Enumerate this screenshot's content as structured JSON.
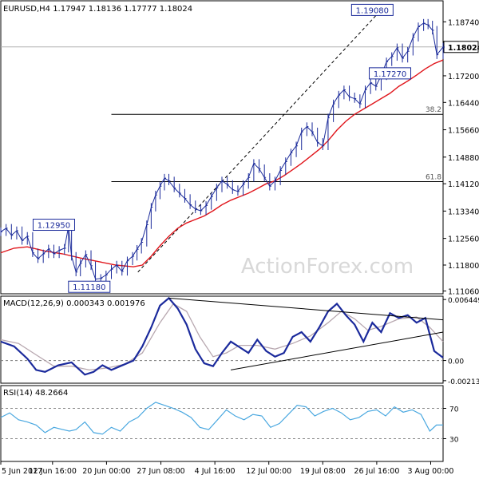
{
  "chart_data": [
    {
      "type": "candlestick",
      "header": {
        "symbol": "EURUSD,H4",
        "values": [
          "1.17947",
          "1.18136",
          "1.17777",
          "1.18024"
        ]
      },
      "ylim": [
        1.1098,
        1.1934
      ],
      "y_ticks": [
        1.1874,
        1.1802,
        1.172,
        1.1644,
        1.1566,
        1.1488,
        1.1412,
        1.1334,
        1.1256,
        1.118,
        1.1106
      ],
      "y_tick_labels": [
        "1.18740",
        "1.18024",
        "1.17200",
        "1.16440",
        "1.15660",
        "1.14880",
        "1.14120",
        "1.13340",
        "1.12560",
        "1.11800",
        "1.11060"
      ],
      "current_price": 1.18024,
      "fib_levels": [
        {
          "label": "38.2",
          "value": 1.161
        },
        {
          "label": "61.8",
          "value": 1.1418
        }
      ],
      "price_labels": [
        {
          "text": "1.19080",
          "value": 1.1908,
          "t": 0.84
        },
        {
          "text": "1.12950",
          "value": 1.1295,
          "t": 0.12
        },
        {
          "text": "1.11180",
          "value": 1.1118,
          "t": 0.2
        },
        {
          "text": "1.17270",
          "value": 1.1727,
          "t": 0.88
        }
      ],
      "trend_channel": {
        "from": {
          "t": 0.31,
          "value": 1.116
        },
        "to": {
          "t": 0.86,
          "value": 1.1908
        }
      },
      "close_path": [
        [
          0.0,
          1.1275
        ],
        [
          0.012,
          1.1285
        ],
        [
          0.024,
          1.1265
        ],
        [
          0.036,
          1.1278
        ],
        [
          0.048,
          1.125
        ],
        [
          0.06,
          1.1262
        ],
        [
          0.072,
          1.1215
        ],
        [
          0.084,
          1.1198
        ],
        [
          0.096,
          1.1212
        ],
        [
          0.108,
          1.1226
        ],
        [
          0.12,
          1.1212
        ],
        [
          0.132,
          1.1222
        ],
        [
          0.144,
          1.1228
        ],
        [
          0.153,
          1.129
        ],
        [
          0.16,
          1.1205
        ],
        [
          0.17,
          1.116
        ],
        [
          0.18,
          1.1185
        ],
        [
          0.192,
          1.121
        ],
        [
          0.204,
          1.1178
        ],
        [
          0.214,
          1.114
        ],
        [
          0.226,
          1.1142
        ],
        [
          0.238,
          1.1152
        ],
        [
          0.25,
          1.1168
        ],
        [
          0.262,
          1.118
        ],
        [
          0.274,
          1.1162
        ],
        [
          0.286,
          1.1192
        ],
        [
          0.298,
          1.1205
        ],
        [
          0.308,
          1.1225
        ],
        [
          0.318,
          1.1245
        ],
        [
          0.33,
          1.1295
        ],
        [
          0.34,
          1.1345
        ],
        [
          0.35,
          1.138
        ],
        [
          0.36,
          1.1405
        ],
        [
          0.37,
          1.1428
        ],
        [
          0.38,
          1.142
        ],
        [
          0.392,
          1.14
        ],
        [
          0.404,
          1.1385
        ],
        [
          0.416,
          1.137
        ],
        [
          0.428,
          1.1352
        ],
        [
          0.44,
          1.134
        ],
        [
          0.452,
          1.1335
        ],
        [
          0.464,
          1.135
        ],
        [
          0.476,
          1.1375
        ],
        [
          0.488,
          1.14
        ],
        [
          0.5,
          1.142
        ],
        [
          0.512,
          1.141
        ],
        [
          0.524,
          1.1395
        ],
        [
          0.536,
          1.139
        ],
        [
          0.548,
          1.141
        ],
        [
          0.56,
          1.143
        ],
        [
          0.572,
          1.147
        ],
        [
          0.584,
          1.1455
        ],
        [
          0.596,
          1.143
        ],
        [
          0.608,
          1.1405
        ],
        [
          0.62,
          1.142
        ],
        [
          0.632,
          1.145
        ],
        [
          0.644,
          1.1475
        ],
        [
          0.656,
          1.15
        ],
        [
          0.668,
          1.152
        ],
        [
          0.68,
          1.156
        ],
        [
          0.692,
          1.1575
        ],
        [
          0.704,
          1.156
        ],
        [
          0.716,
          1.153
        ],
        [
          0.728,
          1.152
        ],
        [
          0.74,
          1.16
        ],
        [
          0.752,
          1.164
        ],
        [
          0.764,
          1.1665
        ],
        [
          0.776,
          1.168
        ],
        [
          0.788,
          1.166
        ],
        [
          0.8,
          1.1655
        ],
        [
          0.812,
          1.164
        ],
        [
          0.824,
          1.168
        ],
        [
          0.836,
          1.17
        ],
        [
          0.848,
          1.169
        ],
        [
          0.86,
          1.172
        ],
        [
          0.872,
          1.176
        ],
        [
          0.884,
          1.1775
        ],
        [
          0.896,
          1.18
        ],
        [
          0.908,
          1.177
        ],
        [
          0.92,
          1.179
        ],
        [
          0.932,
          1.183
        ],
        [
          0.944,
          1.186
        ],
        [
          0.956,
          1.187
        ],
        [
          0.966,
          1.1865
        ],
        [
          0.976,
          1.185
        ],
        [
          0.986,
          1.178
        ],
        [
          1.0,
          1.1802
        ]
      ],
      "ma_path": [
        [
          0.0,
          1.1215
        ],
        [
          0.03,
          1.1228
        ],
        [
          0.06,
          1.1232
        ],
        [
          0.1,
          1.122
        ],
        [
          0.14,
          1.1212
        ],
        [
          0.18,
          1.12
        ],
        [
          0.22,
          1.119
        ],
        [
          0.26,
          1.118
        ],
        [
          0.3,
          1.1175
        ],
        [
          0.32,
          1.118
        ],
        [
          0.34,
          1.1205
        ],
        [
          0.36,
          1.1235
        ],
        [
          0.38,
          1.1262
        ],
        [
          0.4,
          1.1285
        ],
        [
          0.42,
          1.13
        ],
        [
          0.44,
          1.131
        ],
        [
          0.46,
          1.132
        ],
        [
          0.48,
          1.1335
        ],
        [
          0.5,
          1.1352
        ],
        [
          0.52,
          1.1365
        ],
        [
          0.54,
          1.1375
        ],
        [
          0.56,
          1.1385
        ],
        [
          0.58,
          1.1398
        ],
        [
          0.6,
          1.1412
        ],
        [
          0.62,
          1.142
        ],
        [
          0.64,
          1.1435
        ],
        [
          0.66,
          1.1452
        ],
        [
          0.68,
          1.147
        ],
        [
          0.7,
          1.149
        ],
        [
          0.72,
          1.151
        ],
        [
          0.74,
          1.1535
        ],
        [
          0.76,
          1.1565
        ],
        [
          0.78,
          1.159
        ],
        [
          0.8,
          1.161
        ],
        [
          0.82,
          1.1625
        ],
        [
          0.84,
          1.164
        ],
        [
          0.86,
          1.1655
        ],
        [
          0.88,
          1.167
        ],
        [
          0.9,
          1.169
        ],
        [
          0.92,
          1.1705
        ],
        [
          0.94,
          1.1722
        ],
        [
          0.96,
          1.174
        ],
        [
          0.98,
          1.1755
        ],
        [
          1.0,
          1.1765
        ]
      ],
      "x_labels": [
        {
          "text": "5 Jun 2017",
          "t": 0.0
        },
        {
          "text": "12 Jun 16:00",
          "t": 0.117
        },
        {
          "text": "20 Jun 00:00",
          "t": 0.239
        },
        {
          "text": "27 Jun 08:00",
          "t": 0.362
        },
        {
          "text": "4 Jul 16:00",
          "t": 0.484
        },
        {
          "text": "12 Jul 00:00",
          "t": 0.606
        },
        {
          "text": "19 Jul 08:00",
          "t": 0.728
        },
        {
          "text": "26 Jul 16:00",
          "t": 0.85
        },
        {
          "text": "3 Aug 00:00",
          "t": 0.972
        }
      ],
      "watermark": "ActionForex.com"
    },
    {
      "type": "line",
      "title": "MACD(12,26,9) 0.000343 0.001976",
      "ylim": [
        -0.0024,
        0.0068
      ],
      "y_ticks": [
        0.006449,
        0.0,
        -0.002134
      ],
      "y_tick_labels": [
        "0.006449",
        "0.00",
        "-0.002134"
      ],
      "series": [
        {
          "name": "MACD",
          "color": "#1b2a9c",
          "points": [
            [
              0.0,
              0.002
            ],
            [
              0.03,
              0.0015
            ],
            [
              0.06,
              0.0002
            ],
            [
              0.08,
              -0.001
            ],
            [
              0.1,
              -0.0012
            ],
            [
              0.13,
              -0.0005
            ],
            [
              0.16,
              -0.0002
            ],
            [
              0.19,
              -0.0015
            ],
            [
              0.21,
              -0.0012
            ],
            [
              0.23,
              -0.0005
            ],
            [
              0.25,
              -0.001
            ],
            [
              0.27,
              -0.0006
            ],
            [
              0.3,
              0.0
            ],
            [
              0.32,
              0.0015
            ],
            [
              0.34,
              0.0035
            ],
            [
              0.36,
              0.0058
            ],
            [
              0.38,
              0.0066
            ],
            [
              0.4,
              0.0055
            ],
            [
              0.42,
              0.0038
            ],
            [
              0.44,
              0.0012
            ],
            [
              0.46,
              -0.0003
            ],
            [
              0.48,
              -0.0006
            ],
            [
              0.5,
              0.0008
            ],
            [
              0.52,
              0.002
            ],
            [
              0.54,
              0.0014
            ],
            [
              0.56,
              0.0008
            ],
            [
              0.58,
              0.0022
            ],
            [
              0.6,
              0.001
            ],
            [
              0.62,
              0.0004
            ],
            [
              0.64,
              0.0008
            ],
            [
              0.66,
              0.0025
            ],
            [
              0.68,
              0.003
            ],
            [
              0.7,
              0.002
            ],
            [
              0.72,
              0.0035
            ],
            [
              0.74,
              0.0052
            ],
            [
              0.76,
              0.006
            ],
            [
              0.78,
              0.0048
            ],
            [
              0.8,
              0.0038
            ],
            [
              0.82,
              0.002
            ],
            [
              0.84,
              0.004
            ],
            [
              0.86,
              0.003
            ],
            [
              0.88,
              0.005
            ],
            [
              0.9,
              0.0045
            ],
            [
              0.92,
              0.0048
            ],
            [
              0.94,
              0.004
            ],
            [
              0.96,
              0.0045
            ],
            [
              0.98,
              0.001
            ],
            [
              1.0,
              0.0003
            ]
          ]
        },
        {
          "name": "Signal",
          "color": "#b8a8b0",
          "points": [
            [
              0.0,
              0.0022
            ],
            [
              0.04,
              0.0018
            ],
            [
              0.08,
              0.0006
            ],
            [
              0.12,
              -0.0006
            ],
            [
              0.16,
              -0.0006
            ],
            [
              0.2,
              -0.001
            ],
            [
              0.24,
              -0.0008
            ],
            [
              0.28,
              -0.0004
            ],
            [
              0.32,
              0.0008
            ],
            [
              0.36,
              0.004
            ],
            [
              0.39,
              0.006
            ],
            [
              0.42,
              0.0052
            ],
            [
              0.45,
              0.0025
            ],
            [
              0.48,
              0.0004
            ],
            [
              0.51,
              0.0008
            ],
            [
              0.54,
              0.0016
            ],
            [
              0.58,
              0.0016
            ],
            [
              0.62,
              0.0012
            ],
            [
              0.66,
              0.0018
            ],
            [
              0.7,
              0.0026
            ],
            [
              0.74,
              0.004
            ],
            [
              0.77,
              0.0052
            ],
            [
              0.8,
              0.0044
            ],
            [
              0.83,
              0.0032
            ],
            [
              0.86,
              0.0036
            ],
            [
              0.9,
              0.0044
            ],
            [
              0.94,
              0.0046
            ],
            [
              0.97,
              0.0035
            ],
            [
              1.0,
              0.002
            ]
          ]
        }
      ],
      "trend_lines": [
        {
          "from": [
            0.38,
            0.0066
          ],
          "to": [
            1.0,
            0.0043
          ]
        },
        {
          "from": [
            0.52,
            -0.001
          ],
          "to": [
            1.0,
            0.003
          ]
        }
      ]
    },
    {
      "type": "line",
      "title": "RSI(14) 48.2664",
      "ylim": [
        0,
        100
      ],
      "y_ticks": [
        70,
        30
      ],
      "y_tick_labels": [
        "70",
        "30"
      ],
      "series": [
        {
          "name": "RSI",
          "color": "#4aa8e0",
          "points": [
            [
              0.0,
              58
            ],
            [
              0.02,
              64
            ],
            [
              0.04,
              55
            ],
            [
              0.06,
              52
            ],
            [
              0.08,
              48
            ],
            [
              0.1,
              38
            ],
            [
              0.12,
              45
            ],
            [
              0.14,
              42
            ],
            [
              0.155,
              40
            ],
            [
              0.17,
              42
            ],
            [
              0.19,
              52
            ],
            [
              0.21,
              38
            ],
            [
              0.23,
              36
            ],
            [
              0.25,
              45
            ],
            [
              0.27,
              40
            ],
            [
              0.29,
              52
            ],
            [
              0.31,
              58
            ],
            [
              0.33,
              70
            ],
            [
              0.35,
              78
            ],
            [
              0.37,
              74
            ],
            [
              0.39,
              70
            ],
            [
              0.41,
              65
            ],
            [
              0.43,
              58
            ],
            [
              0.45,
              45
            ],
            [
              0.47,
              42
            ],
            [
              0.49,
              55
            ],
            [
              0.51,
              68
            ],
            [
              0.53,
              60
            ],
            [
              0.55,
              55
            ],
            [
              0.57,
              62
            ],
            [
              0.59,
              60
            ],
            [
              0.61,
              45
            ],
            [
              0.63,
              50
            ],
            [
              0.65,
              62
            ],
            [
              0.67,
              74
            ],
            [
              0.69,
              72
            ],
            [
              0.71,
              60
            ],
            [
              0.73,
              66
            ],
            [
              0.75,
              70
            ],
            [
              0.77,
              64
            ],
            [
              0.79,
              55
            ],
            [
              0.81,
              58
            ],
            [
              0.83,
              66
            ],
            [
              0.85,
              68
            ],
            [
              0.87,
              60
            ],
            [
              0.89,
              72
            ],
            [
              0.91,
              65
            ],
            [
              0.93,
              68
            ],
            [
              0.95,
              62
            ],
            [
              0.97,
              40
            ],
            [
              0.985,
              48
            ],
            [
              1.0,
              48
            ]
          ]
        }
      ]
    }
  ]
}
